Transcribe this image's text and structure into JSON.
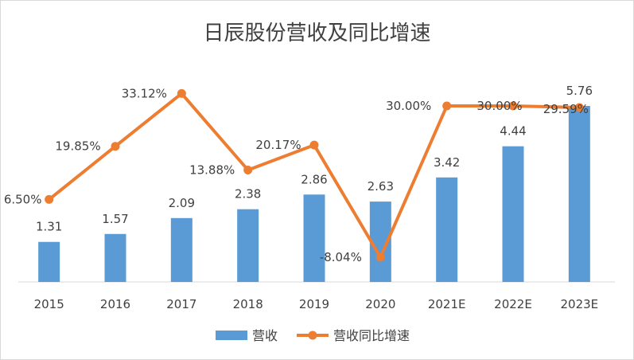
{
  "chart_data": {
    "type": "bar+line",
    "title": "日辰股份营收及同比增速",
    "categories": [
      "2015",
      "2016",
      "2017",
      "2018",
      "2019",
      "2020",
      "2021E",
      "2022E",
      "2023E"
    ],
    "series": [
      {
        "name": "营收",
        "type": "bar",
        "color": "#5b9bd5",
        "values": [
          1.31,
          1.57,
          2.09,
          2.38,
          2.86,
          2.63,
          3.42,
          4.44,
          5.76
        ],
        "labels": [
          "1.31",
          "1.57",
          "2.09",
          "2.38",
          "2.86",
          "2.63",
          "3.42",
          "4.44",
          "5.76"
        ]
      },
      {
        "name": "营收同比增速",
        "type": "line",
        "color": "#ed7d31",
        "values": [
          6.5,
          19.85,
          33.12,
          13.88,
          20.17,
          -8.04,
          30.0,
          30.0,
          29.59
        ],
        "labels": [
          "6.50%",
          "19.85%",
          "33.12%",
          "13.88%",
          "20.17%",
          "-8.04%",
          "30.00%",
          "30.00%",
          "29.59%"
        ]
      }
    ],
    "legend_position": "bottom",
    "grid": false
  }
}
